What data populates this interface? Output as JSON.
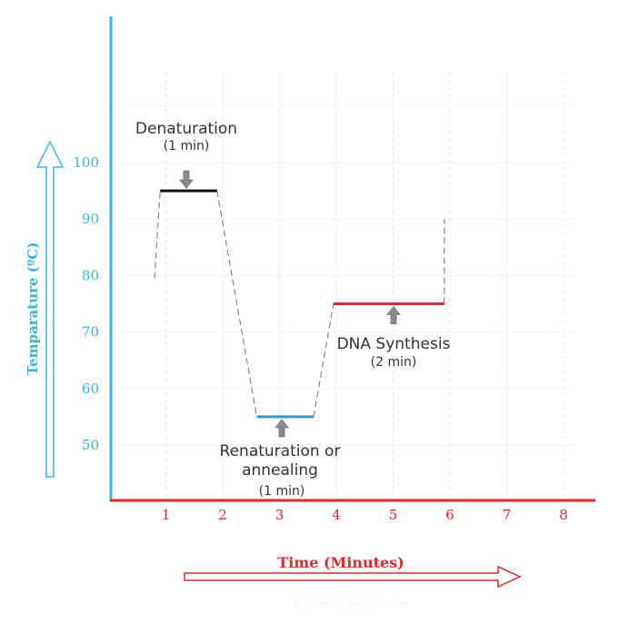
{
  "chart_data": {
    "type": "line",
    "xlabel": "Time (Minutes)",
    "ylabel": "Temparature (ºC)",
    "x_ticks": [
      "1",
      "2",
      "3",
      "4",
      "5",
      "6",
      "7",
      "8"
    ],
    "y_ticks": [
      "50",
      "60",
      "70",
      "80",
      "90",
      "100"
    ],
    "xlim": [
      0,
      8.5
    ],
    "ylim": [
      40.3,
      120
    ],
    "grid": true,
    "colors": {
      "y_axis": "#3bb4dc",
      "x_axis": "#e8262a",
      "guide": "#888888",
      "denaturation": "#111111",
      "annealing": "#2e9bd6",
      "synthesis": "#e8262a",
      "arrow": "#8a8a8a"
    },
    "steps": [
      {
        "label": "Denaturation",
        "duration": "(1 min)",
        "x_start": 0.9,
        "x_end": 1.9,
        "temp": 95,
        "color": "denaturation"
      },
      {
        "label": "Renaturation or annealing",
        "label_lines": [
          "Renaturation or",
          "annealing"
        ],
        "duration": "(1 min)",
        "x_start": 2.6,
        "x_end": 3.6,
        "temp": 55,
        "color": "annealing"
      },
      {
        "label": "DNA Synthesis",
        "duration": "(2 min)",
        "x_start": 3.95,
        "x_end": 5.9,
        "temp": 75,
        "color": "synthesis"
      }
    ],
    "transitions": [
      {
        "x": [
          0.8,
          0.9
        ],
        "y": [
          79.5,
          95
        ]
      },
      {
        "x": [
          1.9,
          2.6
        ],
        "y": [
          95,
          55
        ]
      },
      {
        "x": [
          3.6,
          3.95
        ],
        "y": [
          55,
          75
        ]
      },
      {
        "x": [
          5.9,
          5.9
        ],
        "y": [
          75,
          90
        ]
      }
    ],
    "watermark": "Prizmmstudyecentre.com"
  }
}
